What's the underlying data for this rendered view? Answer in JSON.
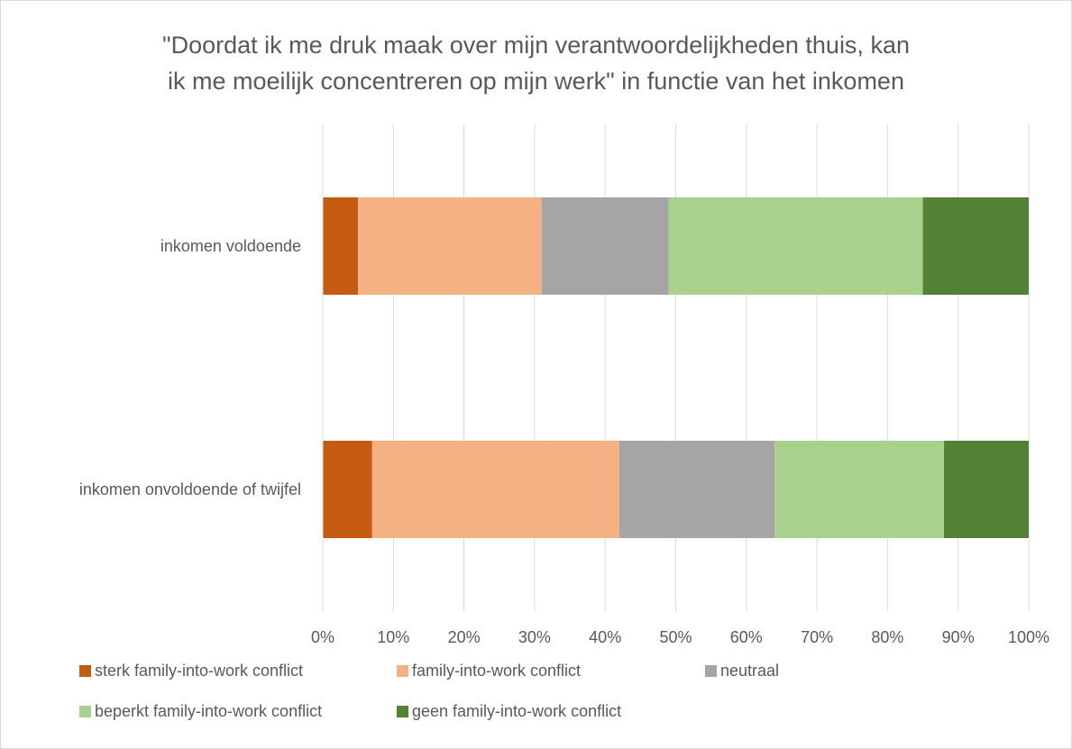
{
  "chart_data": {
    "type": "bar",
    "orientation": "horizontal",
    "stacked": "percent",
    "title_lines": [
      "\"Doordat ik me druk maak over mijn verantwoordelijkheden thuis, kan",
      "ik me moeilijk concentreren op mijn werk\" in functie van het inkomen"
    ],
    "categories": [
      "inkomen voldoende",
      "inkomen onvoldoende of twijfel"
    ],
    "series": [
      {
        "name": "sterk family-into-work conflict",
        "color": "#C55A11",
        "values": [
          5,
          7
        ]
      },
      {
        "name": "family-into-work conflict",
        "color": "#F4B183",
        "values": [
          26,
          35
        ]
      },
      {
        "name": "neutraal",
        "color": "#A5A5A5",
        "values": [
          18,
          22
        ]
      },
      {
        "name": "beperkt family-into-work conflict",
        "color": "#A9D18E",
        "values": [
          36,
          24
        ]
      },
      {
        "name": "geen family-into-work conflict",
        "color": "#548235",
        "values": [
          15,
          12
        ]
      }
    ],
    "xlim": [
      0,
      100
    ],
    "x_ticks": [
      "0%",
      "10%",
      "20%",
      "30%",
      "40%",
      "50%",
      "60%",
      "70%",
      "80%",
      "90%",
      "100%"
    ],
    "grid": true,
    "legend_position": "bottom"
  }
}
